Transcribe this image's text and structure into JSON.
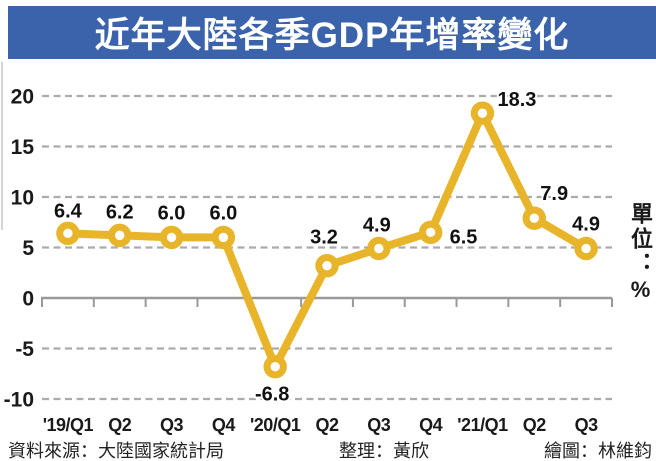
{
  "banner": {
    "title": "近年大陸各季GDP年增率變化",
    "bg_color": "#3B63AB",
    "text_color": "#FFFFFF"
  },
  "unit_label": "單位：%",
  "footer": {
    "source": "資料來源：大陸國家統計局",
    "editor": "整理：黃欣",
    "illustrator": "繪圖：林維鈞"
  },
  "chart_data": {
    "type": "line",
    "title": "近年大陸各季GDP年增率變化",
    "xlabel": "",
    "ylabel": "單位：%",
    "categories": [
      "'19/Q1",
      "Q2",
      "Q3",
      "Q4",
      "'20/Q1",
      "Q2",
      "Q3",
      "Q4",
      "'21/Q1",
      "Q2",
      "Q3"
    ],
    "values": [
      6.4,
      6.2,
      6.0,
      6.0,
      -6.8,
      3.2,
      4.9,
      6.5,
      18.3,
      7.9,
      4.9
    ],
    "data_labels": [
      "6.4",
      "6.2",
      "6.0",
      "6.0",
      "-6.8",
      "3.2",
      "4.9",
      "6.5",
      "18.3",
      "7.9",
      "4.9"
    ],
    "y_ticks": [
      20,
      15,
      10,
      5,
      0,
      -5,
      -10
    ],
    "ylim": [
      -10,
      20
    ],
    "grid": "horizontal dashed",
    "legend": "none",
    "marker": "ring",
    "line_color": "#E8B42A",
    "grid_color": "#ABABAB",
    "axis_color": "#999999",
    "label_color": "#111111"
  }
}
